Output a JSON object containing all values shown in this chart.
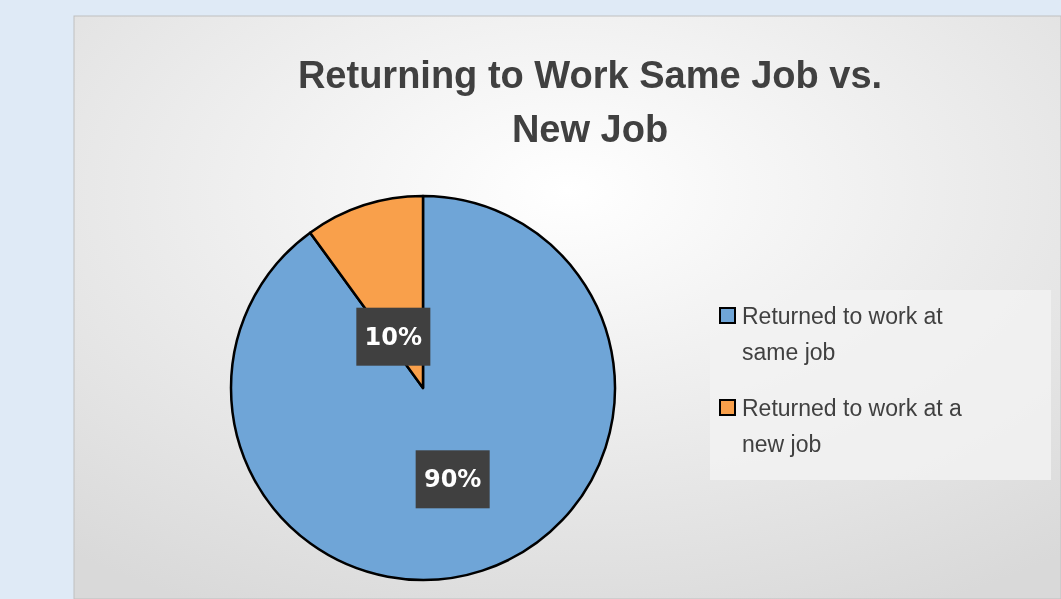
{
  "chart_data": {
    "type": "pie",
    "title": "Returning to Work Same Job vs. New Job",
    "categories": [
      "Returned to work at same job",
      "Returned to work at a new job"
    ],
    "values": [
      90,
      10
    ],
    "colors": [
      "#6fa5d7",
      "#f9a04b"
    ],
    "value_labels": [
      "90%",
      "10%"
    ],
    "legend": "right"
  }
}
